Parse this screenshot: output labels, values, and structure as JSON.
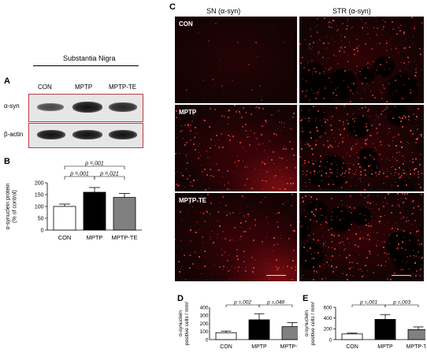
{
  "panel_labels": {
    "a": "A",
    "b": "B",
    "c": "C",
    "d": "D",
    "e": "E"
  },
  "blot": {
    "title": "Substantia Nigra",
    "lanes": [
      "CON",
      "MPTP",
      "MPTP-TE"
    ],
    "rows": [
      "α-syn",
      "β-actin"
    ]
  },
  "micro": {
    "col_headers": [
      "SN (α-syn)",
      "STR (α-syn)"
    ],
    "row_labels": [
      "CON",
      "MPTP",
      "MPTP-TE"
    ]
  },
  "chart_data": [
    {
      "id": "B",
      "type": "bar",
      "categories": [
        "CON",
        "MPTP",
        "MPTP-TE"
      ],
      "values": [
        100,
        160,
        138
      ],
      "errors": [
        10,
        20,
        17
      ],
      "colors": [
        "#ffffff",
        "#000000",
        "#808080"
      ],
      "ylabel": "α-synuclein protein\n(% of control)",
      "ylim": [
        0,
        200
      ],
      "yticks": [
        0,
        50,
        100,
        150,
        200
      ],
      "annotations": [
        {
          "from": 0,
          "to": 1,
          "text": "p =,001"
        },
        {
          "from": 1,
          "to": 2,
          "text": "p =,021"
        },
        {
          "from": 0,
          "to": 2,
          "text": "p =,001"
        }
      ]
    },
    {
      "id": "D",
      "type": "bar",
      "categories": [
        "CON",
        "MPTP",
        "MPTP-TE"
      ],
      "values": [
        85,
        245,
        160
      ],
      "errors": [
        20,
        75,
        50
      ],
      "colors": [
        "#ffffff",
        "#000000",
        "#808080"
      ],
      "ylabel": "α-synuclein\npositive cells / mm²",
      "ylim": [
        0,
        400
      ],
      "yticks": [
        0,
        100,
        200,
        300,
        400
      ],
      "annotations": [
        {
          "from": 0,
          "to": 1,
          "text": "p =,002"
        },
        {
          "from": 1,
          "to": 2,
          "text": "p =,048"
        }
      ]
    },
    {
      "id": "E",
      "type": "bar",
      "categories": [
        "CON",
        "MPTP",
        "MPTP-TE"
      ],
      "values": [
        105,
        375,
        185
      ],
      "errors": [
        15,
        90,
        50
      ],
      "colors": [
        "#ffffff",
        "#000000",
        "#808080"
      ],
      "ylabel": "α-synuclein\npositive cells / mm²",
      "ylim": [
        0,
        600
      ],
      "yticks": [
        0,
        200,
        400,
        600
      ],
      "annotations": [
        {
          "from": 0,
          "to": 1,
          "text": "p =,001"
        },
        {
          "from": 1,
          "to": 2,
          "text": "p =,003"
        }
      ]
    }
  ]
}
